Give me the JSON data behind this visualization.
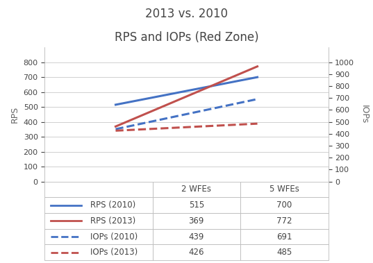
{
  "title_line1": "2013 vs. 2010",
  "title_line2": "RPS and IOPs (Red Zone)",
  "x_values": [
    1,
    2
  ],
  "x_labels": [
    "2 WFEs",
    "5 WFEs"
  ],
  "rps_2010": [
    515,
    700
  ],
  "rps_2013": [
    369,
    772
  ],
  "iops_2010": [
    439,
    691
  ],
  "iops_2013": [
    426,
    485
  ],
  "color_2010": "#4472C4",
  "color_2013": "#C0504D",
  "ylabel_left": "RPS",
  "ylabel_right": "IOPs",
  "ylim_left": [
    0,
    900
  ],
  "ylim_right": [
    0,
    1125
  ],
  "yticks_left": [
    0,
    100,
    200,
    300,
    400,
    500,
    600,
    700,
    800
  ],
  "yticks_right": [
    0,
    100,
    200,
    300,
    400,
    500,
    600,
    700,
    800,
    900,
    1000
  ],
  "background_color": "#FFFFFF",
  "grid_color": "#D0D0D0",
  "linewidth": 2.2,
  "title_fontsize": 12,
  "series_info": [
    {
      "label": "RPS (2010)",
      "color": "#4472C4",
      "ls": "-"
    },
    {
      "label": "RPS (2013)",
      "color": "#C0504D",
      "ls": "-"
    },
    {
      "label": "IOPs (2010)",
      "color": "#4472C4",
      "ls": "--"
    },
    {
      "label": "IOPs (2013)",
      "color": "#C0504D",
      "ls": "--"
    }
  ],
  "table_data": [
    [
      "RPS (2010)",
      "515",
      "700"
    ],
    [
      "RPS (2013)",
      "369",
      "772"
    ],
    [
      "IOPs (2010)",
      "439",
      "691"
    ],
    [
      "IOPs (2013)",
      "426",
      "485"
    ]
  ]
}
